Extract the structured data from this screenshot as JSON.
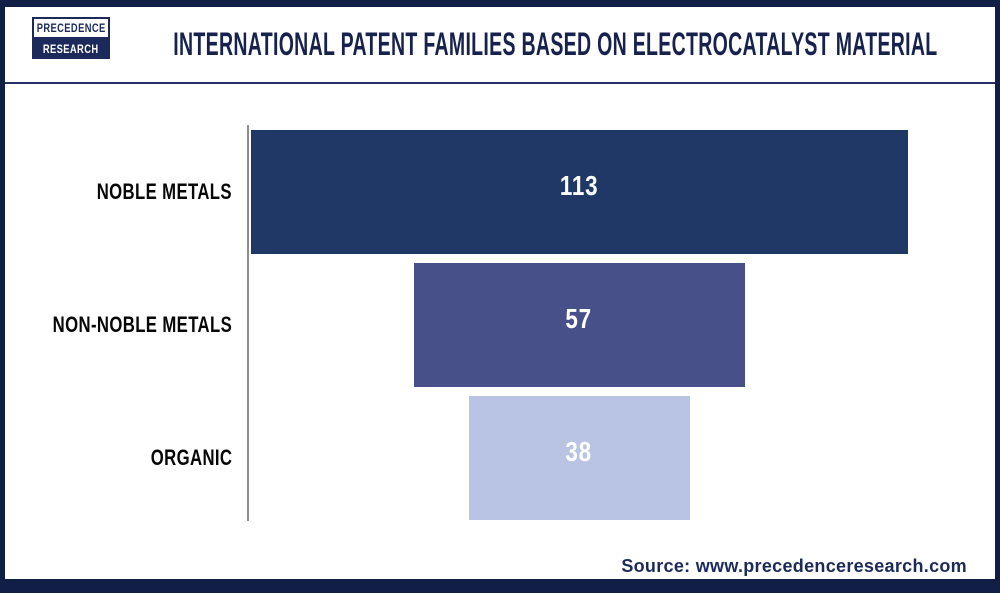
{
  "header": {
    "logo": {
      "line1": "PRECEDENCE",
      "line2": "RESEARCH"
    },
    "title": "INTERNATIONAL PATENT FAMILIES BASED ON ELECTROCATALYST MATERIAL"
  },
  "chart_data": {
    "type": "bar",
    "subtype": "horizontal-centered-funnel",
    "title": "INTERNATIONAL PATENT FAMILIES BASED ON ELECTROCATALYST MATERIAL",
    "categories": [
      "NOBLE METALS",
      "NON-NOBLE METALS",
      "ORGANIC"
    ],
    "values": [
      113,
      57,
      38
    ],
    "value_labels": [
      "113",
      "57",
      "38"
    ],
    "bar_colors": [
      "#1F3865",
      "#475088",
      "#B9C3E3"
    ],
    "value_label_color": "#FFFFFF",
    "xlabel": "",
    "ylabel": "",
    "xlim": [
      0,
      113
    ],
    "gridlines": false,
    "legend": false,
    "axis_line_color": "#8C8C8C"
  },
  "footer": {
    "source": "Source: www.precedenceresearch.com"
  },
  "colors": {
    "frame": "#111F47",
    "title_text": "#16224D",
    "category_text": "#070707",
    "divider": "#2A2E66",
    "logo_navy": "#1B2A5B"
  }
}
